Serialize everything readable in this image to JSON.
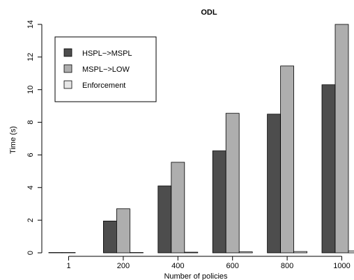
{
  "chart_data": {
    "type": "bar",
    "title": "ODL",
    "xlabel": "Number of policies",
    "ylabel": "Time (s)",
    "categories": [
      "1",
      "200",
      "400",
      "600",
      "800",
      "1000"
    ],
    "ylim": [
      0,
      14
    ],
    "yticks": [
      0,
      2,
      4,
      6,
      8,
      10,
      12,
      14
    ],
    "grid": false,
    "legend_position": "top-left",
    "series": [
      {
        "name": "HSPL−>MSPL",
        "color": "#4d4d4d",
        "values": [
          0.02,
          1.95,
          4.1,
          6.25,
          8.5,
          10.3
        ]
      },
      {
        "name": "MSPL−>LOW",
        "color": "#aeaeae",
        "values": [
          0.02,
          2.7,
          5.55,
          8.55,
          11.45,
          14.0
        ]
      },
      {
        "name": "Enforcement",
        "color": "#e6e6e6",
        "values": [
          0.0,
          0.02,
          0.04,
          0.06,
          0.08,
          0.12
        ]
      }
    ]
  }
}
